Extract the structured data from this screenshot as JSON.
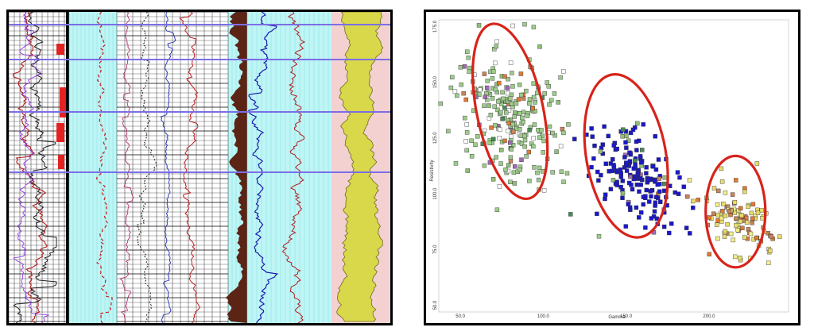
{
  "chart_data": [
    {
      "type": "line",
      "title": "",
      "tracks": [
        {
          "name": "",
          "curves": 3,
          "shading": "red"
        },
        {
          "name": "",
          "curves": 5,
          "shading": "none"
        },
        {
          "name": "",
          "curves": 2,
          "shading": "brown-red"
        },
        {
          "name": "",
          "curves": 2,
          "shading": "blue"
        },
        {
          "name": "",
          "curves": 1,
          "shading": "yellow"
        }
      ],
      "grid": true
    },
    {
      "type": "scatter",
      "title": "",
      "xlabel": "Gamma",
      "ylabel": "Resistivity",
      "xlim": [
        37,
        248
      ],
      "ylim": [
        47,
        178
      ],
      "xticks": [
        "50.0",
        "100.0",
        "150.0",
        "200.0"
      ],
      "yticks": [
        "50.0",
        "75.0",
        "100.0",
        "125.0",
        "150.0",
        "175.0"
      ],
      "grid": false,
      "clusters": [
        {
          "name": "",
          "color": "#9dcc8a",
          "cx": 82,
          "cy": 135,
          "rx": 28,
          "ry": 25,
          "n": 260
        },
        {
          "name": "",
          "color": "#1a18c8",
          "cx": 155,
          "cy": 108,
          "rx": 24,
          "ry": 17,
          "n": 180
        },
        {
          "name": "",
          "color": "#e8dc6a",
          "cx": 218,
          "cy": 88,
          "rx": 17,
          "ry": 13,
          "n": 110
        }
      ],
      "ellipses": [
        {
          "cx": 80,
          "cy": 137,
          "rx": 20,
          "ry": 40,
          "rotate": -12
        },
        {
          "cx": 150,
          "cy": 117,
          "rx": 24,
          "ry": 37,
          "rotate": -10
        },
        {
          "cx": 216,
          "cy": 92,
          "rx": 18,
          "ry": 25,
          "rotate": 0
        }
      ]
    }
  ]
}
